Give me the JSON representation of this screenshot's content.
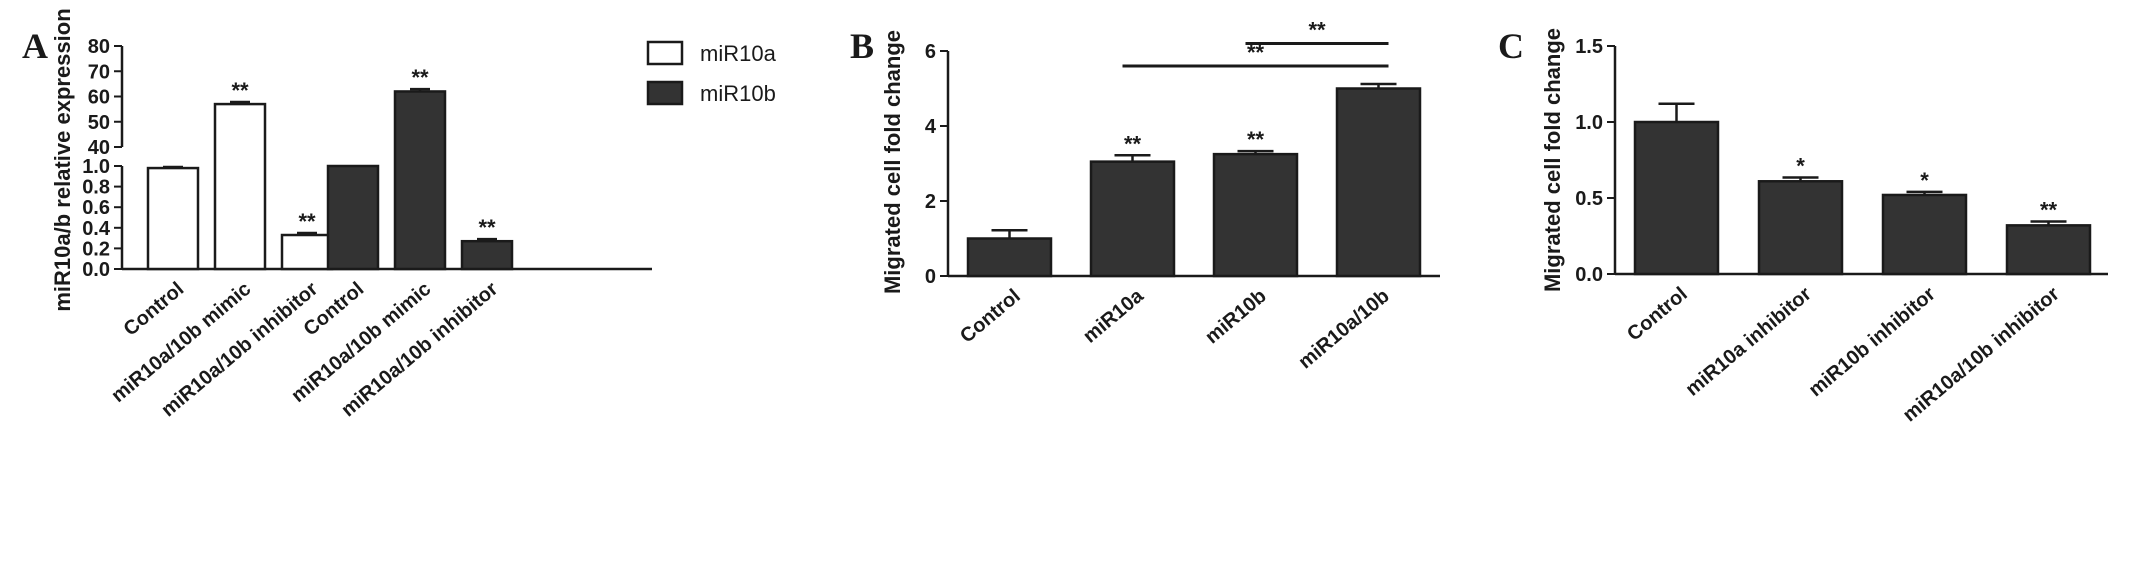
{
  "panels": [
    {
      "letter": "A"
    },
    {
      "letter": "B"
    },
    {
      "letter": "C"
    }
  ],
  "chart_data": [
    {
      "type": "bar",
      "panel": "A",
      "ylabel": "miR10a/b relative expression",
      "y_broken_axis": true,
      "lower_segment": {
        "ylim": [
          0,
          1.0
        ],
        "ticks": [
          "0.0",
          "0.2",
          "0.4",
          "0.6",
          "0.8",
          "1.0"
        ]
      },
      "upper_segment": {
        "ylim": [
          40,
          80
        ],
        "ticks": [
          "40",
          "50",
          "60",
          "70",
          "80"
        ]
      },
      "categories": [
        "Control",
        "miR10a/10b mimic",
        "miR10a/10b inhibitor"
      ],
      "series": [
        {
          "name": "miR10a",
          "color": "#ffffff",
          "values": [
            0.98,
            57,
            0.33
          ],
          "errors": [
            0.01,
            0.8,
            0.02
          ],
          "significance": [
            "",
            "**",
            "**"
          ]
        },
        {
          "name": "miR10b",
          "color": "#333333",
          "values": [
            1.0,
            62,
            0.27
          ],
          "errors": [
            0,
            0.9,
            0.02
          ],
          "significance": [
            "",
            "**",
            "**"
          ]
        }
      ],
      "legend": "top-right",
      "grid": false
    },
    {
      "type": "bar",
      "panel": "B",
      "ylabel": "Migrated cell fold change",
      "ylim": [
        0,
        6
      ],
      "yticks": [
        "0",
        "2",
        "4",
        "6"
      ],
      "categories": [
        "Control",
        "miR10a",
        "miR10b",
        "miR10a/10b"
      ],
      "values": [
        1.0,
        3.05,
        3.25,
        5.0
      ],
      "errors": [
        0.22,
        0.17,
        0.08,
        0.12
      ],
      "significance": [
        "",
        "**",
        "**",
        ""
      ],
      "brackets": [
        {
          "from": "miR10b",
          "to": "miR10a/10b",
          "label": "**",
          "y": 6.2
        },
        {
          "from": "miR10a",
          "to": "miR10a/10b",
          "label": "**",
          "y": 5.6
        }
      ],
      "color": "#333333",
      "grid": false
    },
    {
      "type": "bar",
      "panel": "C",
      "ylabel": "Migrated cell fold change",
      "ylim": [
        0,
        1.5
      ],
      "yticks": [
        "0.0",
        "0.5",
        "1.0",
        "1.5"
      ],
      "categories": [
        "Control",
        "miR10a inhibitor",
        "miR10b inhibitor",
        "miR10a/10b inhibitor"
      ],
      "values": [
        1.0,
        0.61,
        0.52,
        0.32
      ],
      "errors": [
        0.12,
        0.025,
        0.02,
        0.025
      ],
      "significance": [
        "",
        "*",
        "*",
        "**"
      ],
      "color": "#333333",
      "grid": false
    }
  ]
}
